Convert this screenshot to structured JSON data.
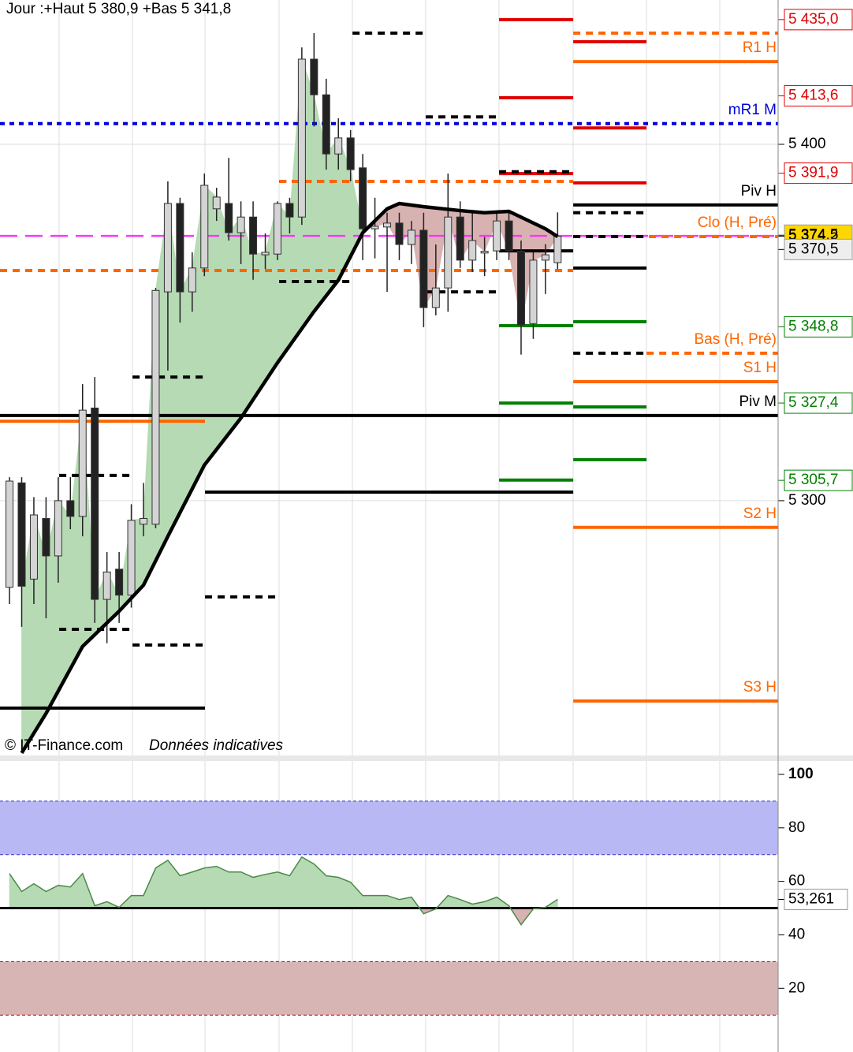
{
  "chart_data": [
    {
      "type": "candlestick",
      "title": "Jour :+Haut 5 380,9 +Bas 5 341,8",
      "source": "© IT-Finance.com",
      "note": "Données indicatives",
      "xlim": [
        -0.78,
        63.1
      ],
      "ylim": [
        5228.5,
        5440.5
      ],
      "yticks": [
        {
          "value": 5400,
          "label": "5 400"
        },
        {
          "value": 5300,
          "label": "5 300"
        }
      ],
      "grid": true,
      "ohlc": [
        [
          5275.7,
          5306.6,
          5271,
          5305.5
        ],
        [
          5305,
          5306.6,
          5264.6,
          5276
        ],
        [
          5278,
          5301,
          5271,
          5296
        ],
        [
          5295,
          5301,
          5267,
          5284.5
        ],
        [
          5284.5,
          5306.6,
          5277,
          5300
        ],
        [
          5300,
          5306.6,
          5292,
          5295.6
        ],
        [
          5295.6,
          5332.7,
          5290,
          5325.4
        ],
        [
          5326,
          5334.7,
          5265.7,
          5272.3
        ],
        [
          5272.3,
          5285.6,
          5260,
          5280
        ],
        [
          5280.8,
          5285.6,
          5265.7,
          5273.5
        ],
        [
          5273.5,
          5299,
          5270,
          5294.5
        ],
        [
          5293.4,
          5305,
          5290,
          5295
        ],
        [
          5293.4,
          5359.7,
          5292.3,
          5359
        ],
        [
          5358.6,
          5389.6,
          5336.5,
          5383.4
        ],
        [
          5383.4,
          5385,
          5350,
          5358.6
        ],
        [
          5358.6,
          5369.7,
          5353,
          5365.3
        ],
        [
          5365.3,
          5391.8,
          5363,
          5388.5
        ],
        [
          5381.9,
          5387.8,
          5378.5,
          5385.2
        ],
        [
          5383.4,
          5396.2,
          5373,
          5375.2
        ],
        [
          5375.2,
          5384,
          5366.4,
          5379.6
        ],
        [
          5379.6,
          5384,
          5362,
          5369.2
        ],
        [
          5369,
          5375,
          5365,
          5369.7
        ],
        [
          5369.2,
          5384,
          5367.5,
          5383.4
        ],
        [
          5383.4,
          5385,
          5375,
          5379.6
        ],
        [
          5379.6,
          5427.2,
          5377.4,
          5423.9
        ],
        [
          5423.9,
          5431.2,
          5405,
          5413.9
        ],
        [
          5413.9,
          5418.4,
          5392.9,
          5397.3
        ],
        [
          5397.3,
          5407.3,
          5392.9,
          5401.8
        ],
        [
          5401.8,
          5404,
          5389.6,
          5392.9
        ],
        [
          5393.4,
          5397.3,
          5367.5,
          5376.3
        ],
        [
          5376.3,
          5385,
          5368,
          5377
        ],
        [
          5376.8,
          5380.8,
          5358.6,
          5377.9
        ],
        [
          5377.9,
          5380.8,
          5367.5,
          5371.9
        ],
        [
          5371.9,
          5378.5,
          5366.4,
          5375.9
        ],
        [
          5375.9,
          5380.8,
          5348.7,
          5354.2
        ],
        [
          5354.2,
          5371.9,
          5352,
          5359.7
        ],
        [
          5359.7,
          5391.8,
          5353,
          5379.6
        ],
        [
          5379.6,
          5384,
          5365.3,
          5367.5
        ],
        [
          5367.5,
          5380.8,
          5364.2,
          5373
        ],
        [
          5369.5,
          5374,
          5363,
          5370
        ],
        [
          5370.1,
          5380.8,
          5367.5,
          5378.5
        ],
        [
          5378.5,
          5380.8,
          5367.5,
          5370.1
        ],
        [
          5370,
          5373,
          5341,
          5349.3
        ],
        [
          5349.7,
          5369.7,
          5345.4,
          5367.5
        ],
        [
          5367.5,
          5372,
          5358,
          5369
        ],
        [
          5366.8,
          5380.9,
          5365,
          5374.2
        ]
      ],
      "ma": {
        "x": [
          1,
          3,
          6,
          9,
          11,
          13,
          16,
          19,
          22,
          25,
          27,
          29,
          31,
          32,
          34,
          37,
          39,
          41,
          44,
          45
        ],
        "values": [
          5229.2,
          5240.3,
          5259.1,
          5269.0,
          5276.3,
          5290.0,
          5310.0,
          5323.2,
          5338.7,
          5353.1,
          5361.9,
          5375.2,
          5381.9,
          5383.4,
          5382.5,
          5381.4,
          5380.8,
          5381.2,
          5376.3,
          5374.1
        ]
      },
      "levels": [
        {
          "value": 5431.2,
          "from": 28.16,
          "to": 34.17,
          "color": "#000000",
          "style": "dashed"
        },
        {
          "value": 5407.7,
          "from": 34.17,
          "to": 40.19,
          "color": "#000000",
          "style": "dashed"
        },
        {
          "value": 5389.6,
          "from": 22.14,
          "to": 28.16,
          "color": "#000000",
          "style": "dashed"
        },
        {
          "value": 5361.5,
          "from": 22.14,
          "to": 28.16,
          "color": "#000000",
          "style": "dashed"
        },
        {
          "value": 5358.6,
          "from": 34.17,
          "to": 40.19,
          "color": "#000000",
          "style": "dashed"
        },
        {
          "value": 5334.7,
          "from": 10.1,
          "to": 16.05,
          "color": "#000000",
          "style": "dashed"
        },
        {
          "value": 5307.1,
          "from": 4.08,
          "to": 10.1,
          "color": "#000000",
          "style": "dashed"
        },
        {
          "value": 5273,
          "from": 16.05,
          "to": 22.14,
          "color": "#000000",
          "style": "dashed"
        },
        {
          "value": 5263.9,
          "from": 4.08,
          "to": 10.1,
          "color": "#000000",
          "style": "dashed"
        },
        {
          "value": 5259.5,
          "from": 10.1,
          "to": 16.05,
          "color": "#000000",
          "style": "dashed"
        },
        {
          "value": 5435,
          "from": 40.19,
          "to": 46.28,
          "color": "#e00000",
          "style": "solid"
        },
        {
          "value": 5413.1,
          "from": 40.19,
          "to": 46.28,
          "color": "#e00000",
          "style": "solid"
        },
        {
          "value": 5391.8,
          "from": 40.19,
          "to": 46.28,
          "color": "#e00000",
          "style": "solid"
        },
        {
          "value": 5392.3,
          "from": 40.19,
          "to": 46.28,
          "color": "#000000",
          "style": "dashed"
        },
        {
          "value": 5428.8,
          "from": 46.28,
          "to": 52.3,
          "color": "#e00000",
          "style": "solid"
        },
        {
          "value": 5404.6,
          "from": 46.28,
          "to": 52.3,
          "color": "#e00000",
          "style": "solid"
        },
        {
          "value": 5389.2,
          "from": 46.28,
          "to": 52.3,
          "color": "#e00000",
          "style": "solid"
        },
        {
          "value": 5349.1,
          "from": 40.19,
          "to": 46.28,
          "color": "#008000",
          "style": "solid"
        },
        {
          "value": 5327.4,
          "from": 40.19,
          "to": 46.28,
          "color": "#008000",
          "style": "solid"
        },
        {
          "value": 5305.8,
          "from": 40.19,
          "to": 46.28,
          "color": "#008000",
          "style": "solid"
        },
        {
          "value": 5350.2,
          "from": 46.28,
          "to": 52.3,
          "color": "#008000",
          "style": "solid"
        },
        {
          "value": 5326.3,
          "from": 46.28,
          "to": 52.3,
          "color": "#008000",
          "style": "solid"
        },
        {
          "value": 5311.5,
          "from": 46.28,
          "to": 52.3,
          "color": "#008000",
          "style": "solid"
        },
        {
          "value": 5380.8,
          "from": 46.28,
          "to": 52.3,
          "color": "#000000",
          "style": "dashed"
        },
        {
          "value": 5365.3,
          "from": 46.28,
          "to": 52.3,
          "color": "#000000",
          "style": "solid"
        },
        {
          "value": 5370.1,
          "from": 40.19,
          "to": 46.28,
          "color": "#000000",
          "style": "solid"
        },
        {
          "value": 5302.4,
          "from": 16.05,
          "to": 46.28,
          "color": "#000000",
          "style": "solid"
        },
        {
          "value": 5241.8,
          "from": -0.78,
          "to": 16.05,
          "color": "#000000",
          "style": "solid"
        },
        {
          "value": 5322.3,
          "from": -0.78,
          "to": 16.05,
          "color": "#ff6600",
          "style": "solid"
        },
        {
          "value": 5364.6,
          "from": -0.78,
          "to": 46.28,
          "color": "#ff6600",
          "style": "dashed"
        },
        {
          "value": 5389.6,
          "from": 22.14,
          "to": 46.28,
          "color": "#ff6600",
          "style": "dashed"
        },
        {
          "value": 5405.8,
          "from": -0.78,
          "to": 63.1,
          "color": "#0000dd",
          "style": "dotted",
          "label": "mR1 M"
        },
        {
          "value": 5374.3,
          "from": -0.78,
          "to": 63.1,
          "color": "#ff33ff",
          "style": "longdash"
        },
        {
          "value": 5323.9,
          "from": -0.78,
          "to": 63.1,
          "color": "#000000",
          "style": "solid",
          "label": "Piv M"
        },
        {
          "value": 5383,
          "from": 46.28,
          "to": 63.1,
          "color": "#000000",
          "style": "solid",
          "label": "Piv H"
        },
        {
          "value": 5431.2,
          "from": 46.28,
          "to": 63.1,
          "color": "#ff6600",
          "style": "dashed"
        },
        {
          "value": 5423.2,
          "from": 46.28,
          "to": 63.1,
          "color": "#ff6600",
          "style": "solid",
          "label": "R1 H"
        },
        {
          "value": 5374.1,
          "from": 46.28,
          "to": 63.1,
          "color": "#ff6600",
          "style": "dashed",
          "label": "Clo (H, Pré)"
        },
        {
          "value": 5374.1,
          "from": 46.28,
          "to": 52.3,
          "color": "#000000",
          "style": "dashed"
        },
        {
          "value": 5341.4,
          "from": 46.28,
          "to": 52.3,
          "color": "#000000",
          "style": "dashed"
        },
        {
          "value": 5341.4,
          "from": 52.3,
          "to": 63.1,
          "color": "#ff6600",
          "style": "dashed",
          "label": "Bas (H, Pré)"
        },
        {
          "value": 5333.4,
          "from": 46.28,
          "to": 63.1,
          "color": "#ff6600",
          "style": "solid",
          "label": "S1 H"
        },
        {
          "value": 5292.5,
          "from": 46.28,
          "to": 63.1,
          "color": "#ff6600",
          "style": "solid",
          "label": "S2 H"
        },
        {
          "value": 5243.8,
          "from": 46.28,
          "to": 63.1,
          "color": "#ff6600",
          "style": "solid",
          "label": "S3 H"
        }
      ],
      "markers": [
        {
          "value": 5435.0,
          "label": "5 435,0",
          "color": "#e00000"
        },
        {
          "value": 5413.6,
          "label": "5 413,6",
          "color": "#e00000"
        },
        {
          "value": 5391.9,
          "label": "5 391,9",
          "color": "#e00000"
        },
        {
          "value": 5374.5,
          "label": "5 374,5",
          "color": "#000000",
          "background": "#ffd700"
        },
        {
          "value": 5374.2,
          "label": "5 374,2",
          "color": "#000000",
          "box": false
        },
        {
          "value": 5370.5,
          "label": "5 370,5",
          "color": "#000000",
          "background": "#eeeeee"
        },
        {
          "value": 5348.8,
          "label": "5 348,8",
          "color": "#008000"
        },
        {
          "value": 5327.4,
          "label": "5 327,4",
          "color": "#008000"
        },
        {
          "value": 5305.7,
          "label": "5 305,7",
          "color": "#008000"
        }
      ]
    },
    {
      "type": "line",
      "ylim": [
        -3.8,
        105
      ],
      "yticks": [
        100,
        80,
        60,
        40,
        20
      ],
      "midline": 50,
      "bands": [
        {
          "from": 70,
          "to": 90,
          "color": "#b8b8f4",
          "edge": "#3333cc"
        },
        {
          "from": 10,
          "to": 30,
          "color": "#d8b5b5",
          "edge": "#cc0000"
        }
      ],
      "values": [
        62.9,
        56.2,
        59.1,
        56.2,
        58.5,
        57.9,
        62.9,
        50.9,
        52.4,
        50.3,
        54.7,
        54.7,
        65.0,
        67.9,
        62.1,
        63.5,
        65.0,
        65.6,
        63.5,
        63.5,
        61.5,
        62.6,
        63.5,
        62.1,
        69.1,
        66.5,
        62.1,
        61.5,
        59.7,
        54.7,
        54.7,
        54.7,
        53.2,
        54.1,
        47.9,
        49.7,
        54.7,
        53.2,
        51.5,
        52.4,
        54.1,
        50.9,
        43.8,
        49.7,
        50.3,
        53.261
      ],
      "last": {
        "value": 53.261,
        "label": "53,261"
      }
    }
  ]
}
